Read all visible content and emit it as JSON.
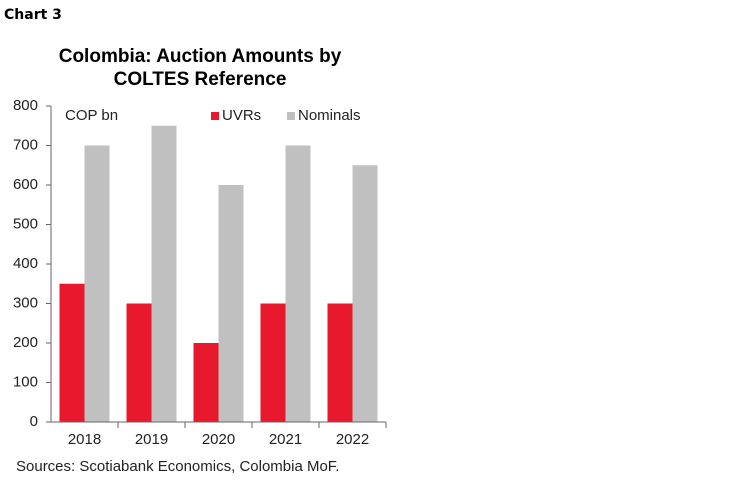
{
  "chart_data": {
    "type": "bar",
    "chart_label": "Chart 3",
    "title": [
      "Colombia: Auction Amounts by",
      "COLTES Reference"
    ],
    "unit_label": "COP bn",
    "source": "Sources: Scotiabank Economics, Colombia MoF.",
    "categories": [
      "2018",
      "2019",
      "2020",
      "2021",
      "2022"
    ],
    "series": [
      {
        "name": "UVRs",
        "color": "#e8192c",
        "values": [
          350,
          300,
          200,
          300,
          300
        ]
      },
      {
        "name": "Nominals",
        "color": "#c0c0c0",
        "values": [
          700,
          750,
          600,
          700,
          650
        ]
      }
    ],
    "ylim": [
      0,
      800
    ],
    "yticks": [
      0,
      100,
      200,
      300,
      400,
      500,
      600,
      700,
      800
    ],
    "grid": false
  }
}
